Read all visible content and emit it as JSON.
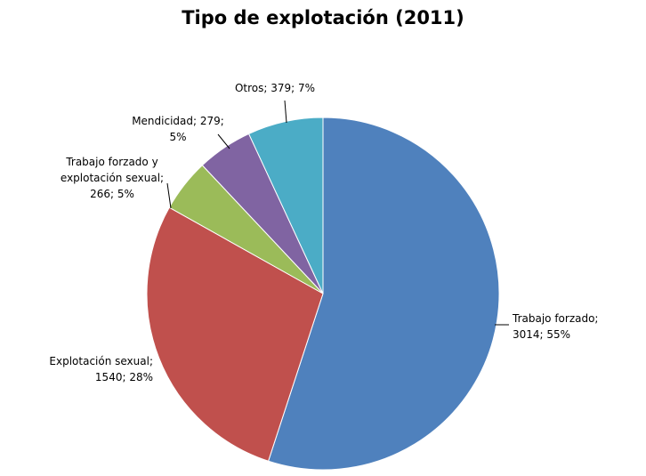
{
  "chart_data": {
    "type": "pie",
    "title": "Tipo de explotación (2011)",
    "slices": [
      {
        "name": "Trabajo forzado",
        "value": 3014,
        "percent": "55%",
        "color": "#4F81BD",
        "label_lines": [
          "Trabajo forzado;",
          "3014; 55%"
        ]
      },
      {
        "name": "Explotación sexual",
        "value": 1540,
        "percent": "28%",
        "color": "#C0504D",
        "label_lines": [
          "Explotación sexual;",
          "1540; 28%"
        ]
      },
      {
        "name": "Trabajo forzado y explotación sexual",
        "value": 266,
        "percent": "5%",
        "color": "#9BBB59",
        "label_lines": [
          "Trabajo forzado y",
          "explotación sexual;",
          "266; 5%"
        ]
      },
      {
        "name": "Mendicidad",
        "value": 279,
        "percent": "5%",
        "color": "#8064A2",
        "label_lines": [
          "Mendicidad; 279;",
          "5%"
        ]
      },
      {
        "name": "Otros",
        "value": 379,
        "percent": "7%",
        "color": "#4BACC6",
        "label_lines": [
          "Otros; 379; 7%"
        ]
      }
    ],
    "start_angle": "12 o'clock",
    "direction": "clockwise",
    "legend": "none"
  }
}
